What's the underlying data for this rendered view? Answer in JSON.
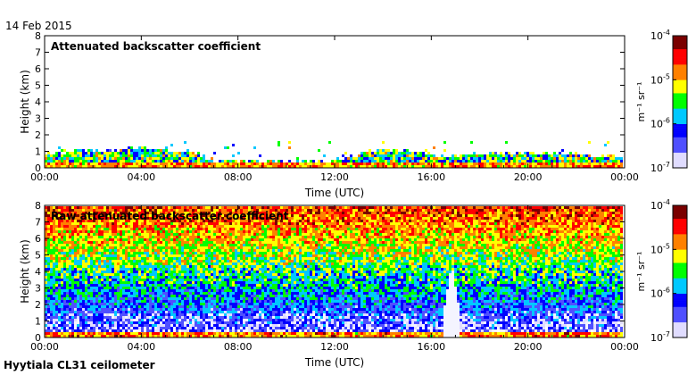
{
  "header": {
    "date": "14 Feb 2015"
  },
  "footer": {
    "site": "Hyytiala CL31 ceilometer"
  },
  "colors": {
    "cmap": [
      "#e0dcff",
      "#5050ff",
      "#0000ff",
      "#00c8ff",
      "#00ff00",
      "#ffff00",
      "#ff8000",
      "#ff0000",
      "#7a0000",
      "#6b006b"
    ],
    "axis": "#000000",
    "text": "#000000"
  },
  "chart_data": [
    {
      "type": "heatmap",
      "title": "Attenuated backscatter coefficient",
      "xlabel": "Time (UTC)",
      "ylabel": "Height (km)",
      "xticks": [
        "00:00",
        "04:00",
        "08:00",
        "12:00",
        "16:00",
        "20:00",
        "00:00"
      ],
      "xlim_hours": [
        0,
        24
      ],
      "ylim_km": [
        0,
        8
      ],
      "yticks": [
        "0",
        "1",
        "2",
        "3",
        "4",
        "5",
        "6",
        "7",
        "8"
      ],
      "colorbar": {
        "label": "m⁻¹ sr⁻¹",
        "ticks": [
          {
            "base": "10",
            "exp": "-4"
          },
          {
            "base": "10",
            "exp": "-5"
          },
          {
            "base": "10",
            "exp": "-6"
          },
          {
            "base": "10",
            "exp": "-7"
          }
        ],
        "range_log10": [
          -7,
          -4
        ]
      },
      "features": {
        "boundary_layer_top_km": [
          [
            0,
            0.8
          ],
          [
            2,
            1.0
          ],
          [
            4,
            1.1
          ],
          [
            6,
            1.0
          ],
          [
            7,
            0.4
          ],
          [
            12,
            0.4
          ],
          [
            14,
            1.1
          ],
          [
            17,
            0.6
          ],
          [
            18,
            0.8
          ],
          [
            20,
            0.8
          ],
          [
            24,
            0.7
          ]
        ],
        "surface_layer_km": 0.3
      }
    },
    {
      "type": "heatmap",
      "title": "Raw attenuated backscatter coefficient",
      "xlabel": "Time (UTC)",
      "ylabel": "Height (km)",
      "xticks": [
        "00:00",
        "04:00",
        "08:00",
        "12:00",
        "16:00",
        "20:00",
        "00:00"
      ],
      "xlim_hours": [
        0,
        24
      ],
      "ylim_km": [
        0,
        8
      ],
      "yticks": [
        "0",
        "1",
        "2",
        "3",
        "4",
        "5",
        "6",
        "7",
        "8"
      ],
      "colorbar": {
        "label": "m⁻¹ sr⁻¹",
        "ticks": [
          {
            "base": "10",
            "exp": "-4"
          },
          {
            "base": "10",
            "exp": "-5"
          },
          {
            "base": "10",
            "exp": "-6"
          },
          {
            "base": "10",
            "exp": "-7"
          }
        ],
        "range_log10": [
          -7,
          -4
        ]
      },
      "features": {
        "noise_gradient": "increasing with height",
        "bright_plume_time_h": 16.9,
        "bright_plume_top_km": 4.5
      }
    }
  ]
}
